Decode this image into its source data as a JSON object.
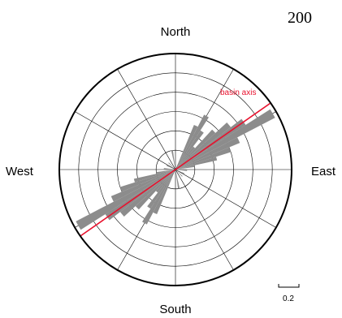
{
  "chart_data": {
    "type": "rose",
    "corner_label": "200",
    "directions": {
      "north": "North",
      "south": "South",
      "east": "East",
      "west": "West"
    },
    "scale_bar_label": "0.2",
    "reference_line": {
      "label": "basin axis",
      "azimuth_deg": 55,
      "color": "#e8112d"
    },
    "bin_width_deg": 5,
    "bar_color": "#8c8c8c",
    "r_max": 0.6,
    "ring_values": [
      0.1,
      0.2,
      0.3,
      0.4,
      0.5,
      0.6
    ],
    "spoke_step_deg": 30,
    "bins": [
      {
        "azimuth_deg": 25,
        "value": 0.25
      },
      {
        "azimuth_deg": 30,
        "value": 0.32
      },
      {
        "azimuth_deg": 35,
        "value": 0.24
      },
      {
        "azimuth_deg": 40,
        "value": 0.15
      },
      {
        "azimuth_deg": 45,
        "value": 0.28
      },
      {
        "azimuth_deg": 50,
        "value": 0.36
      },
      {
        "azimuth_deg": 55,
        "value": 0.43
      },
      {
        "azimuth_deg": 60,
        "value": 0.58
      },
      {
        "azimuth_deg": 65,
        "value": 0.36
      },
      {
        "azimuth_deg": 70,
        "value": 0.3
      },
      {
        "azimuth_deg": 75,
        "value": 0.22
      },
      {
        "azimuth_deg": 80,
        "value": 0.1
      },
      {
        "azimuth_deg": 95,
        "value": 0.06
      },
      {
        "azimuth_deg": 115,
        "value": 0.05
      },
      {
        "azimuth_deg": 135,
        "value": 0.05
      },
      {
        "azimuth_deg": 170,
        "value": 0.1
      },
      {
        "azimuth_deg": 205,
        "value": 0.25
      },
      {
        "azimuth_deg": 210,
        "value": 0.32
      },
      {
        "azimuth_deg": 215,
        "value": 0.24
      },
      {
        "azimuth_deg": 220,
        "value": 0.15
      },
      {
        "azimuth_deg": 225,
        "value": 0.28
      },
      {
        "azimuth_deg": 230,
        "value": 0.36
      },
      {
        "azimuth_deg": 235,
        "value": 0.43
      },
      {
        "azimuth_deg": 240,
        "value": 0.58
      },
      {
        "azimuth_deg": 245,
        "value": 0.36
      },
      {
        "azimuth_deg": 250,
        "value": 0.3
      },
      {
        "azimuth_deg": 255,
        "value": 0.22
      },
      {
        "azimuth_deg": 260,
        "value": 0.1
      },
      {
        "azimuth_deg": 275,
        "value": 0.06
      },
      {
        "azimuth_deg": 295,
        "value": 0.05
      },
      {
        "azimuth_deg": 315,
        "value": 0.05
      },
      {
        "azimuth_deg": 350,
        "value": 0.1
      }
    ]
  }
}
